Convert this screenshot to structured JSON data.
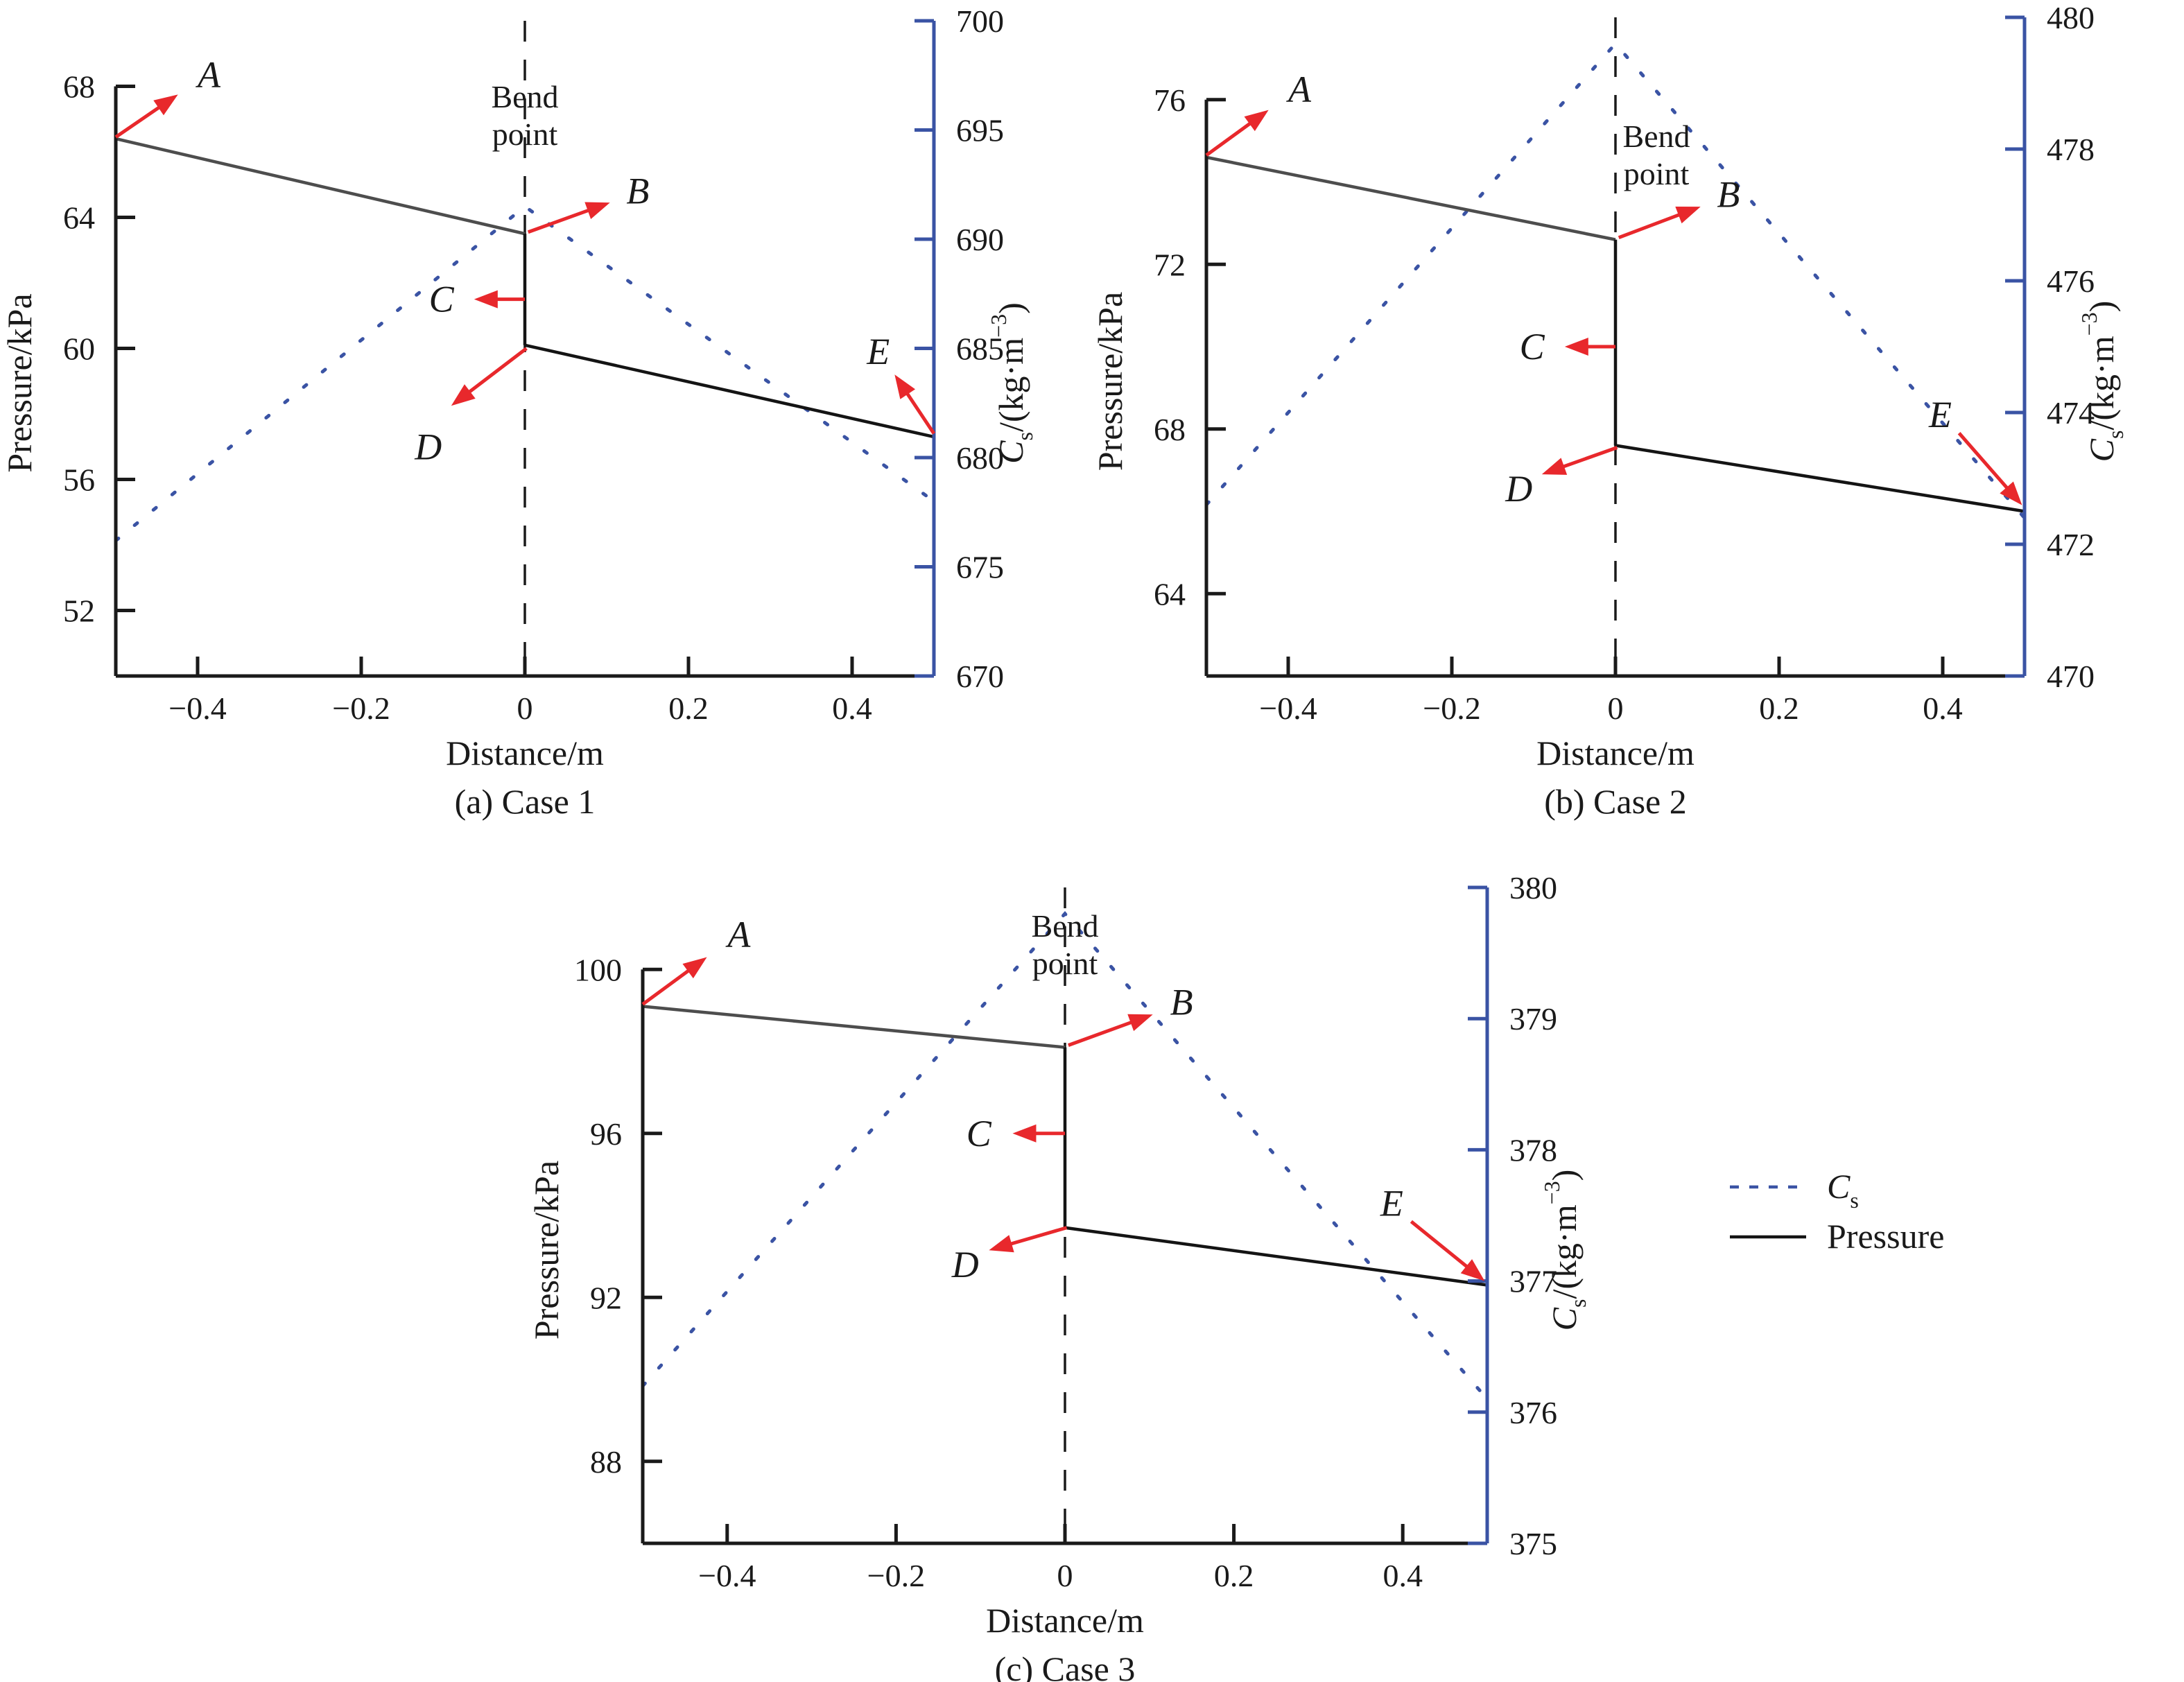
{
  "figure": {
    "background": "#ffffff",
    "colors": {
      "cs_line": "#3a53a4",
      "right_axis": "#3a53a4",
      "left_axis": "#1a1a1a",
      "pressure_upstream": "#4d4d4d",
      "pressure_downstream": "#141414",
      "bend_dashed_line": "#1a1a1a",
      "annotation_red": "#e8282c",
      "tick_label": "#1a1a1a"
    }
  },
  "legend": {
    "items": [
      {
        "id": "cs",
        "style": "dashed",
        "color": "#3a53a4",
        "label": {
          "main": "C",
          "sub": "s",
          "italic": true
        },
        "label_color": "#3a53a4"
      },
      {
        "id": "pressure",
        "style": "solid",
        "color": "#141414",
        "label": {
          "main": "Pressure",
          "italic": false
        },
        "label_color": "#1a1a1a"
      }
    ]
  },
  "chart_data": [
    {
      "id": "case-1",
      "type": "line",
      "caption": "(a) Case 1",
      "xlabel": "Distance/m",
      "ylabel_left": "Pressure/kPa",
      "ylabel_right": {
        "italic": "C",
        "sub": "s",
        "mid": "/(kg·m",
        "sup": "−3",
        "post": ")"
      },
      "xlim": [
        -0.5,
        0.5
      ],
      "xticks": [
        -0.4,
        -0.2,
        0,
        0.2,
        0.4
      ],
      "ylim_left": [
        50,
        70
      ],
      "yticks_left": [
        52,
        56,
        60,
        64,
        68
      ],
      "left_axis_top": 68,
      "ylim_right": [
        670,
        700
      ],
      "yticks_right": [
        670,
        675,
        680,
        685,
        690,
        695,
        700
      ],
      "bend_line_x": 0,
      "bend_label": {
        "lines": [
          "Bend",
          "point"
        ],
        "x": 0,
        "y": 67.35
      },
      "series": {
        "pressure_upstream": {
          "axis": "left",
          "points": [
            [
              -0.5,
              66.4
            ],
            [
              0,
              63.5
            ]
          ]
        },
        "pressure_step": {
          "axis": "left",
          "points": [
            [
              0,
              63.5
            ],
            [
              0,
              60.1
            ]
          ]
        },
        "pressure_downstream": {
          "axis": "left",
          "points": [
            [
              0,
              60.1
            ],
            [
              0.5,
              57.3
            ]
          ]
        },
        "cs": {
          "axis": "right",
          "points": [
            [
              -0.5,
              676.2
            ],
            [
              0,
              691.5
            ],
            [
              0.5,
              678.0
            ]
          ]
        }
      },
      "annotations": [
        {
          "label": "A",
          "label_pos": [
            -0.386,
            68.35
          ],
          "arrow": [
            [
              -0.5,
              66.45
            ],
            [
              -0.424,
              67.75
            ]
          ]
        },
        {
          "label": "B",
          "label_pos": [
            0.138,
            64.8
          ],
          "arrow": [
            [
              0.004,
              63.55
            ],
            [
              0.104,
              64.45
            ]
          ]
        },
        {
          "label": "C",
          "label_pos": [
            -0.102,
            61.5
          ],
          "arrow": [
            [
              0,
              61.5
            ],
            [
              -0.062,
              61.5
            ]
          ]
        },
        {
          "label": "D",
          "label_pos": [
            -0.118,
            57.0
          ],
          "arrow": [
            [
              0.002,
              60.0
            ],
            [
              -0.09,
              58.25
            ]
          ]
        },
        {
          "label": "E",
          "label_pos": [
            0.432,
            59.9
          ],
          "arrow": [
            [
              0.5,
              57.4
            ],
            [
              0.452,
              59.2
            ]
          ]
        }
      ]
    },
    {
      "id": "case-2",
      "type": "line",
      "caption": "(b) Case 2",
      "xlabel": "Distance/m",
      "ylabel_left": "Pressure/kPa",
      "ylabel_right": {
        "italic": "C",
        "sub": "s",
        "mid": "/(kg·m",
        "sup": "−3",
        "post": ")"
      },
      "xlim": [
        -0.5,
        0.5
      ],
      "xticks": [
        -0.4,
        -0.2,
        0,
        0.2,
        0.4
      ],
      "ylim_left": [
        62,
        78
      ],
      "yticks_left": [
        64,
        68,
        72,
        76
      ],
      "left_axis_top": 76,
      "ylim_right": [
        470,
        480
      ],
      "yticks_right": [
        470,
        472,
        474,
        476,
        478,
        480
      ],
      "bend_line_x": 0,
      "bend_label": {
        "lines": [
          "Bend",
          "point"
        ],
        "x": 0.05,
        "y": 74.85
      },
      "series": {
        "pressure_upstream": {
          "axis": "left",
          "points": [
            [
              -0.5,
              74.6
            ],
            [
              0,
              72.6
            ]
          ]
        },
        "pressure_step": {
          "axis": "left",
          "points": [
            [
              0,
              72.6
            ],
            [
              0,
              67.6
            ]
          ]
        },
        "pressure_downstream": {
          "axis": "left",
          "points": [
            [
              0,
              67.6
            ],
            [
              0.5,
              66.0
            ]
          ]
        },
        "cs": {
          "axis": "right",
          "points": [
            [
              -0.5,
              472.6
            ],
            [
              0,
              479.6
            ],
            [
              0.5,
              472.4
            ]
          ]
        }
      },
      "annotations": [
        {
          "label": "A",
          "label_pos": [
            -0.386,
            76.25
          ],
          "arrow": [
            [
              -0.5,
              74.65
            ],
            [
              -0.424,
              75.75
            ]
          ]
        },
        {
          "label": "B",
          "label_pos": [
            0.138,
            73.7
          ],
          "arrow": [
            [
              0.004,
              72.65
            ],
            [
              0.104,
              73.4
            ]
          ]
        },
        {
          "label": "C",
          "label_pos": [
            -0.102,
            70.0
          ],
          "arrow": [
            [
              0,
              70.0
            ],
            [
              -0.062,
              70.0
            ]
          ]
        },
        {
          "label": "D",
          "label_pos": [
            -0.118,
            66.55
          ],
          "arrow": [
            [
              0.002,
              67.55
            ],
            [
              -0.09,
              66.9
            ]
          ]
        },
        {
          "label": "E",
          "label_pos": [
            0.397,
            68.35
          ],
          "arrow": [
            [
              0.42,
              67.9
            ],
            [
              0.497,
              66.15
            ]
          ]
        }
      ]
    },
    {
      "id": "case-3",
      "type": "line",
      "caption": "(c) Case 3",
      "xlabel": "Distance/m",
      "ylabel_left": "Pressure/kPa",
      "ylabel_right": {
        "italic": "C",
        "sub": "s",
        "mid": "/(kg·m",
        "sup": "−3",
        "post": ")"
      },
      "xlim": [
        -0.5,
        0.5
      ],
      "xticks": [
        -0.4,
        -0.2,
        0,
        0.2,
        0.4
      ],
      "ylim_left": [
        86,
        102
      ],
      "yticks_left": [
        88,
        92,
        96,
        100
      ],
      "left_axis_top": 100,
      "ylim_right": [
        375,
        380
      ],
      "yticks_right": [
        375,
        376,
        377,
        378,
        379,
        380
      ],
      "bend_line_x": 0,
      "bend_label": {
        "lines": [
          "Bend",
          "point"
        ],
        "x": 0,
        "y": 100.8
      },
      "series": {
        "pressure_upstream": {
          "axis": "left",
          "points": [
            [
              -0.5,
              99.1
            ],
            [
              0,
              98.1
            ]
          ]
        },
        "pressure_step": {
          "axis": "left",
          "points": [
            [
              0,
              98.1
            ],
            [
              0,
              93.7
            ]
          ]
        },
        "pressure_downstream": {
          "axis": "left",
          "points": [
            [
              0,
              93.7
            ],
            [
              0.5,
              92.3
            ]
          ]
        },
        "cs": {
          "axis": "right",
          "points": [
            [
              -0.5,
              376.2
            ],
            [
              0,
              379.8
            ],
            [
              0.5,
              376.1
            ]
          ]
        }
      },
      "annotations": [
        {
          "label": "A",
          "label_pos": [
            -0.386,
            100.85
          ],
          "arrow": [
            [
              -0.5,
              99.15
            ],
            [
              -0.424,
              100.3
            ]
          ]
        },
        {
          "label": "B",
          "label_pos": [
            0.138,
            99.2
          ],
          "arrow": [
            [
              0.004,
              98.15
            ],
            [
              0.104,
              98.9
            ]
          ]
        },
        {
          "label": "C",
          "label_pos": [
            -0.102,
            96.0
          ],
          "arrow": [
            [
              0,
              96.0
            ],
            [
              -0.062,
              96.0
            ]
          ]
        },
        {
          "label": "D",
          "label_pos": [
            -0.118,
            92.8
          ],
          "arrow": [
            [
              0.002,
              93.7
            ],
            [
              -0.09,
              93.15
            ]
          ]
        },
        {
          "label": "E",
          "label_pos": [
            0.387,
            94.3
          ],
          "arrow": [
            [
              0.41,
              93.85
            ],
            [
              0.497,
              92.4
            ]
          ]
        }
      ]
    }
  ]
}
